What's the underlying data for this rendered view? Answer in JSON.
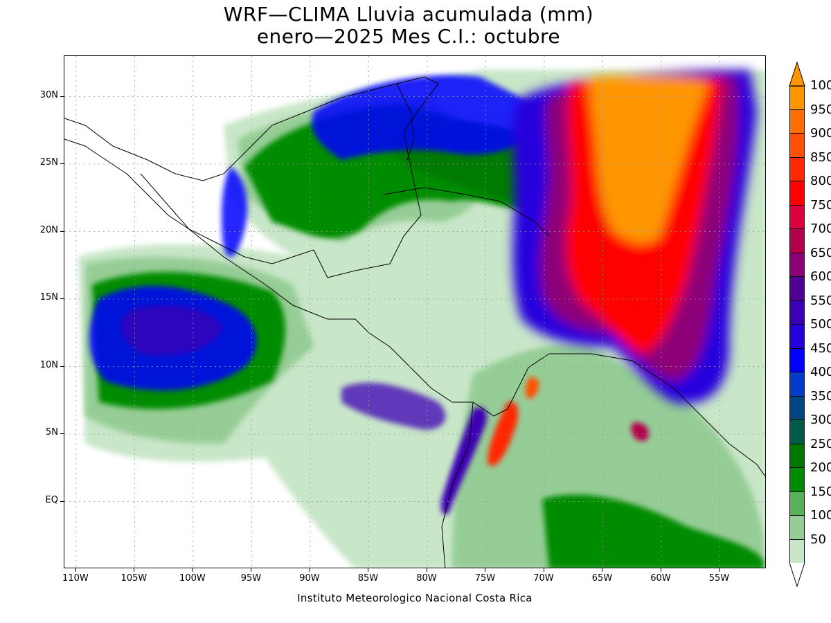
{
  "title": {
    "line1": "WRF—CLIMA Lluvia acumulada (mm)",
    "line2": "enero—2025 Mes C.I.: octubre"
  },
  "credit": "Instituto Meteorologico Nacional Costa Rica",
  "map": {
    "projection": "lat-lon",
    "lon_range": [
      -111,
      -51
    ],
    "lat_range": [
      -5,
      33
    ],
    "lat_axis_labels": [
      {
        "lat": 30,
        "label": "30N"
      },
      {
        "lat": 25,
        "label": "25N"
      },
      {
        "lat": 20,
        "label": "20N"
      },
      {
        "lat": 15,
        "label": "15N"
      },
      {
        "lat": 10,
        "label": "10N"
      },
      {
        "lat": 5,
        "label": "5N"
      },
      {
        "lat": 0,
        "label": "EQ"
      }
    ],
    "lon_axis_labels": [
      {
        "lon": -110,
        "label": "110W"
      },
      {
        "lon": -105,
        "label": "105W"
      },
      {
        "lon": -100,
        "label": "100W"
      },
      {
        "lon": -95,
        "label": "95W"
      },
      {
        "lon": -90,
        "label": "90W"
      },
      {
        "lon": -85,
        "label": "85W"
      },
      {
        "lon": -80,
        "label": "80W"
      },
      {
        "lon": -75,
        "label": "75W"
      },
      {
        "lon": -70,
        "label": "70W"
      },
      {
        "lon": -65,
        "label": "65W"
      },
      {
        "lon": -60,
        "label": "60W"
      },
      {
        "lon": -55,
        "label": "55W"
      }
    ],
    "gridlines": "dotted"
  },
  "colorbar": {
    "levels": [
      {
        "label": "50",
        "color": "#c8e6c8"
      },
      {
        "label": "100",
        "color": "#96cd96"
      },
      {
        "label": "150",
        "color": "#5aaf5a"
      },
      {
        "label": "200",
        "color": "#008c00"
      },
      {
        "label": "250",
        "color": "#007800"
      },
      {
        "label": "300",
        "color": "#005a46"
      },
      {
        "label": "350",
        "color": "#004682"
      },
      {
        "label": "400",
        "color": "#003cc8"
      },
      {
        "label": "450",
        "color": "#0000ff"
      },
      {
        "label": "500",
        "color": "#2800dc"
      },
      {
        "label": "550",
        "color": "#3c00b4"
      },
      {
        "label": "600",
        "color": "#500096"
      },
      {
        "label": "650",
        "color": "#8c0078"
      },
      {
        "label": "700",
        "color": "#b4004b"
      },
      {
        "label": "750",
        "color": "#dc003c"
      },
      {
        "label": "800",
        "color": "#ff0000"
      },
      {
        "label": "850",
        "color": "#ff2800"
      },
      {
        "label": "900",
        "color": "#ff5000"
      },
      {
        "label": "950",
        "color": "#ff6e00"
      },
      {
        "label": "100",
        "color": "#ff9600"
      }
    ]
  }
}
